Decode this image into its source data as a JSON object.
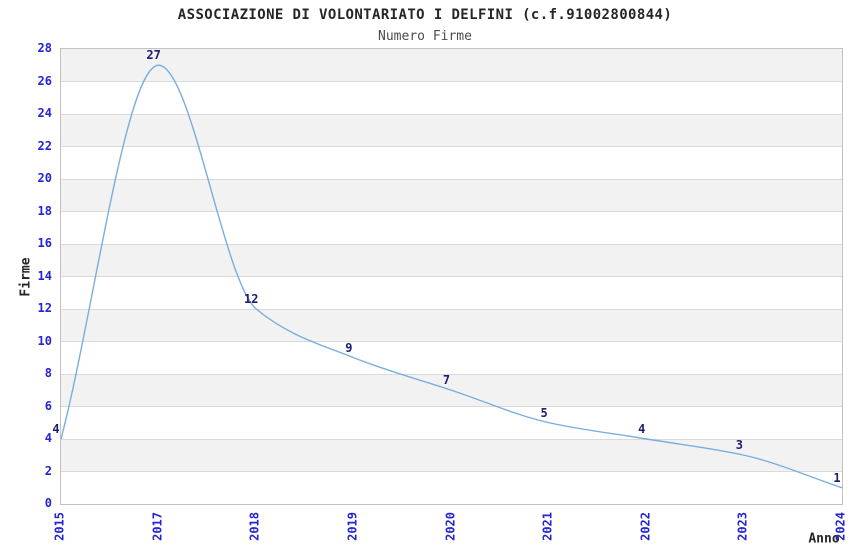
{
  "chart_data": {
    "type": "line",
    "title": "ASSOCIAZIONE DI VOLONTARIATO I DELFINI (c.f.91002800844)",
    "subtitle": "Numero Firme",
    "xlabel": "Anno",
    "ylabel": "Firme",
    "categories": [
      "2015",
      "2017",
      "2018",
      "2019",
      "2020",
      "2021",
      "2022",
      "2023",
      "2024"
    ],
    "values": [
      4,
      27,
      12,
      9,
      7,
      5,
      4,
      3,
      1
    ],
    "series": [
      {
        "name": "Numero Firme",
        "values": [
          4,
          27,
          12,
          9,
          7,
          5,
          4,
          3,
          1
        ]
      }
    ],
    "point_labels": [
      "4",
      "27",
      "12",
      "9",
      "7",
      "5",
      "4",
      "3",
      "1"
    ],
    "ylim": [
      0,
      28
    ],
    "ytick_step": 2,
    "yticks": [
      0,
      2,
      4,
      6,
      8,
      10,
      12,
      14,
      16,
      18,
      20,
      22,
      24,
      26,
      28
    ],
    "grid": "horizontal",
    "background_bands": "alternating-gray-white",
    "legend_position": "none",
    "line_smoothing": "monotone-cubic"
  },
  "colors": {
    "line": "#79aede",
    "point_label": "#1d1d73",
    "tick_label": "#2424d0",
    "band": "#f2f2f2",
    "gridline": "#dadada",
    "plot_border": "#c2c2c2",
    "title_text": "#262626",
    "subtitle_text": "#4d4d4d"
  }
}
